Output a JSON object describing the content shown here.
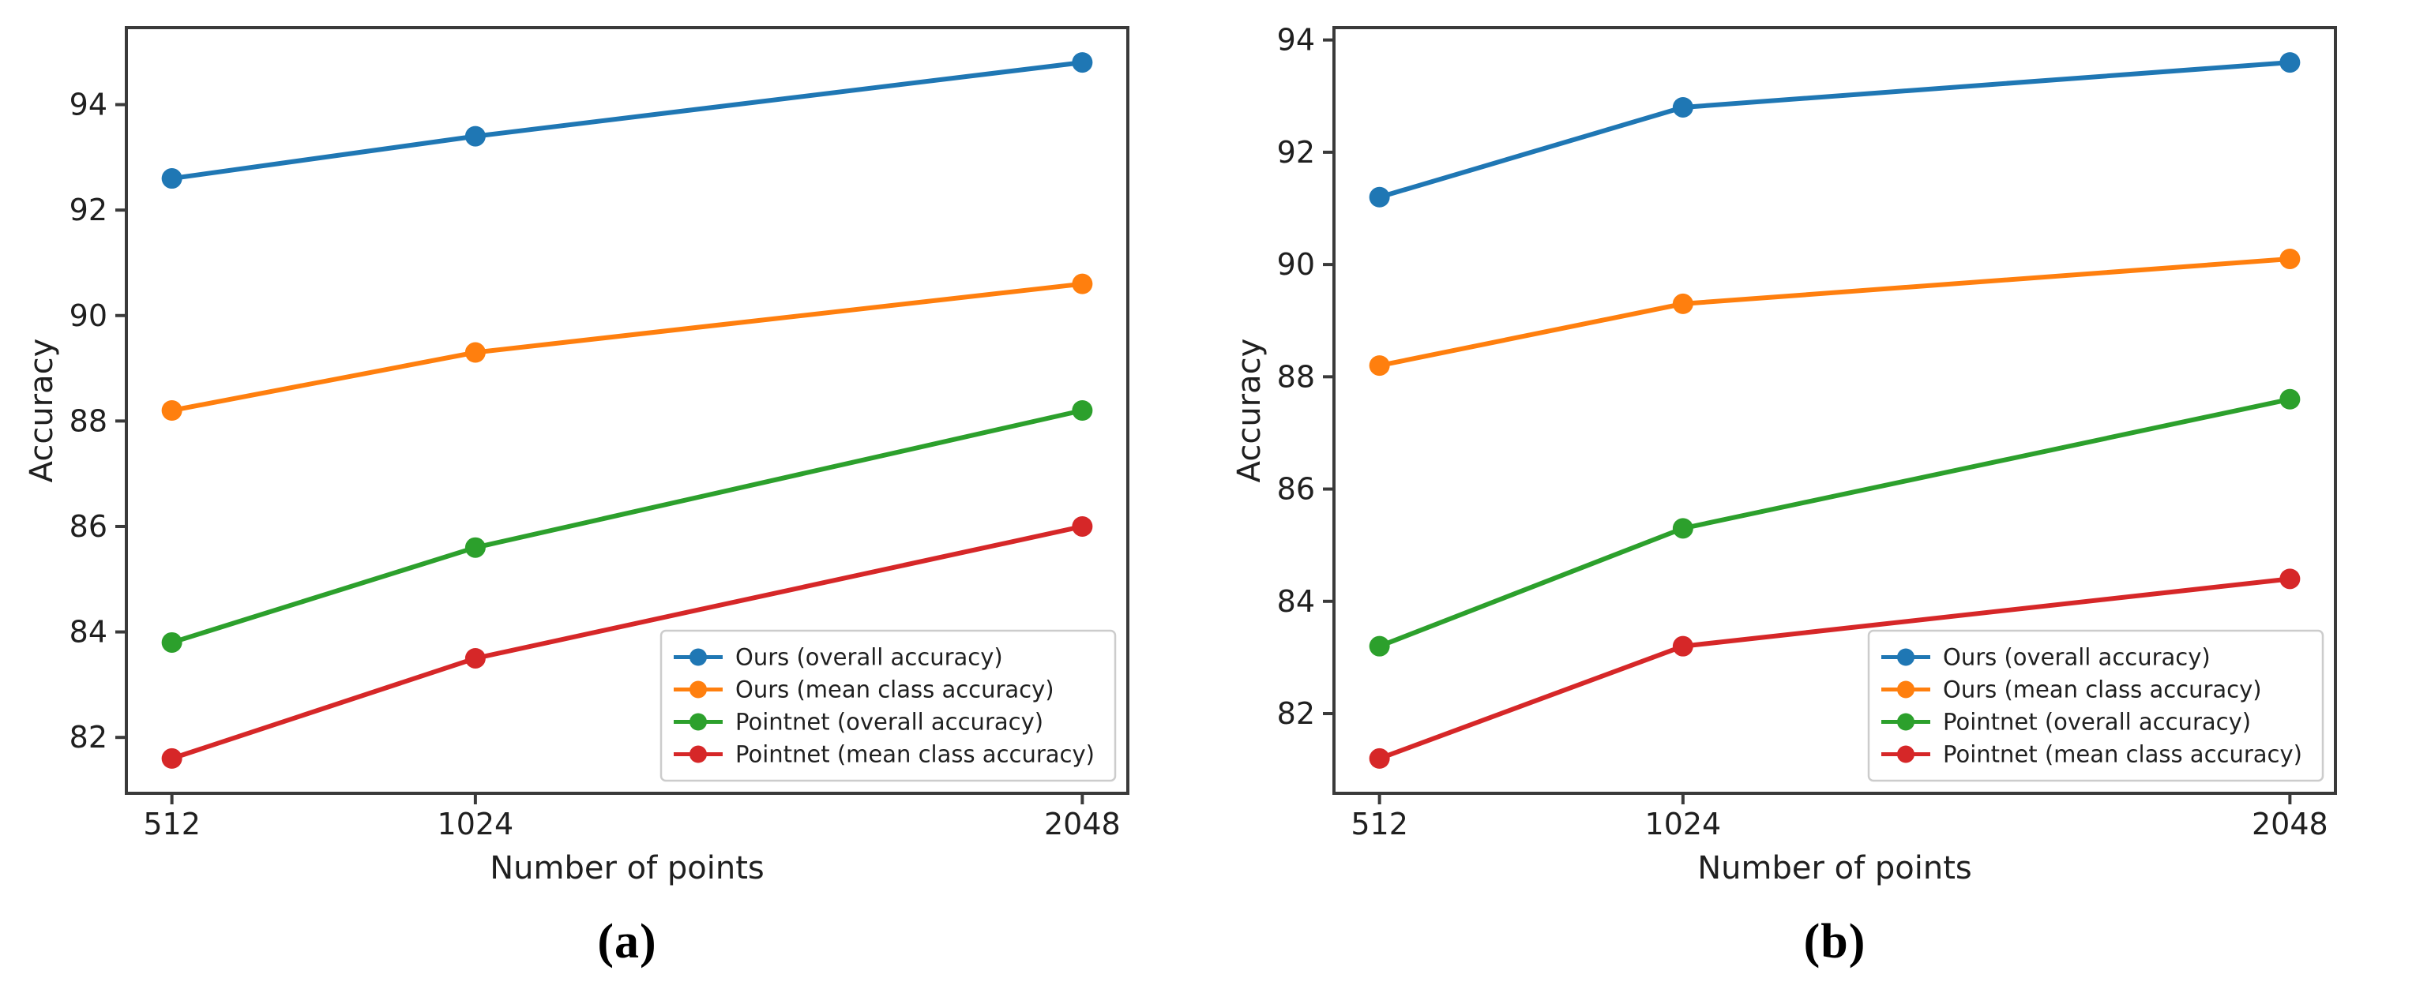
{
  "figure": {
    "background": "#ffffff",
    "text_color": "#1f1f1f",
    "spine_color": "#3a3a3a",
    "legend_border_color": "#cccccc"
  },
  "chart_data": [
    {
      "type": "line",
      "panel": "a",
      "caption": "(a)",
      "xlabel": "Number of points",
      "ylabel": "Accuracy",
      "x": [
        512,
        1024,
        2048
      ],
      "x_tick_labels": [
        "512",
        "1024",
        "2048"
      ],
      "y_ticks": [
        82,
        84,
        86,
        88,
        90,
        92,
        94
      ],
      "xlim": [
        435.2,
        2124.8
      ],
      "ylim": [
        80.94,
        95.46
      ],
      "grid": false,
      "marker": "circle",
      "legend_position": "lower right",
      "series": [
        {
          "name": "Ours (overall accuracy)",
          "color": "#1f77b4",
          "values": [
            92.6,
            93.4,
            94.8
          ]
        },
        {
          "name": "Ours (mean class accuracy)",
          "color": "#ff7f0e",
          "values": [
            88.2,
            89.3,
            90.6
          ]
        },
        {
          "name": "Pointnet (overall accuracy)",
          "color": "#2ca02c",
          "values": [
            83.8,
            85.6,
            88.2
          ]
        },
        {
          "name": "Pointnet (mean class accuracy)",
          "color": "#d62728",
          "values": [
            81.6,
            83.5,
            86.0
          ]
        }
      ]
    },
    {
      "type": "line",
      "panel": "b",
      "caption": "(b)",
      "xlabel": "Number of points",
      "ylabel": "Accuracy",
      "x": [
        512,
        1024,
        2048
      ],
      "x_tick_labels": [
        "512",
        "1024",
        "2048"
      ],
      "y_ticks": [
        82,
        84,
        86,
        88,
        90,
        92,
        94
      ],
      "xlim": [
        435.2,
        2124.8
      ],
      "ylim": [
        80.58,
        94.22
      ],
      "grid": false,
      "marker": "circle",
      "legend_position": "lower right",
      "series": [
        {
          "name": "Ours (overall accuracy)",
          "color": "#1f77b4",
          "values": [
            91.2,
            92.8,
            93.6
          ]
        },
        {
          "name": "Ours (mean class accuracy)",
          "color": "#ff7f0e",
          "values": [
            88.2,
            89.3,
            90.1
          ]
        },
        {
          "name": "Pointnet (overall accuracy)",
          "color": "#2ca02c",
          "values": [
            83.2,
            85.3,
            87.6
          ]
        },
        {
          "name": "Pointnet (mean class accuracy)",
          "color": "#d62728",
          "values": [
            81.2,
            83.2,
            84.4
          ]
        }
      ]
    }
  ]
}
